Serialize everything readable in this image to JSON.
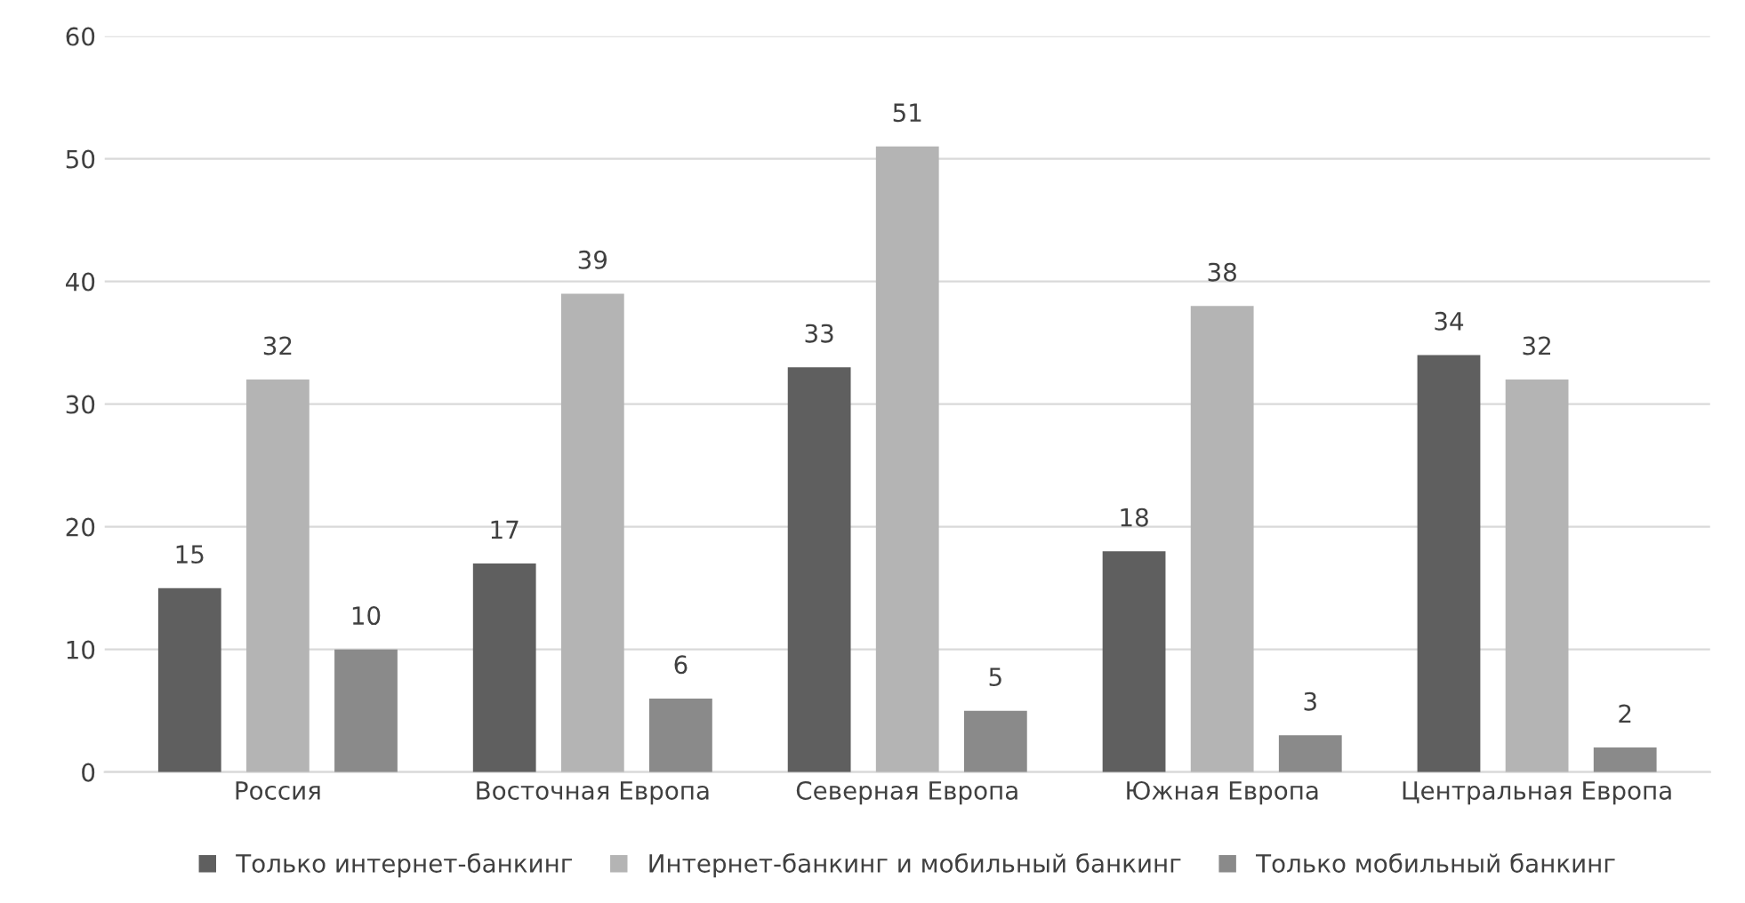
{
  "chart_data": {
    "type": "bar",
    "categories": [
      "Россия",
      "Восточная Европа",
      "Северная Европа",
      "Южная Европа",
      "Центральная Европа"
    ],
    "series": [
      {
        "name": "Только интернет-банкинг",
        "color": "#5f5f5f",
        "values": [
          15,
          17,
          33,
          18,
          34
        ]
      },
      {
        "name": "Интернет-банкинг и мобильный банкинг",
        "color": "#b4b4b4",
        "values": [
          32,
          39,
          51,
          38,
          32
        ]
      },
      {
        "name": "Только мобильный банкинг",
        "color": "#8a8a8a",
        "values": [
          10,
          6,
          5,
          3,
          2
        ]
      }
    ],
    "ylim": [
      0,
      60
    ],
    "yticks": [
      0,
      10,
      20,
      30,
      40,
      50,
      60
    ],
    "grid": "y",
    "legend": "bottom",
    "data_labels": true
  }
}
